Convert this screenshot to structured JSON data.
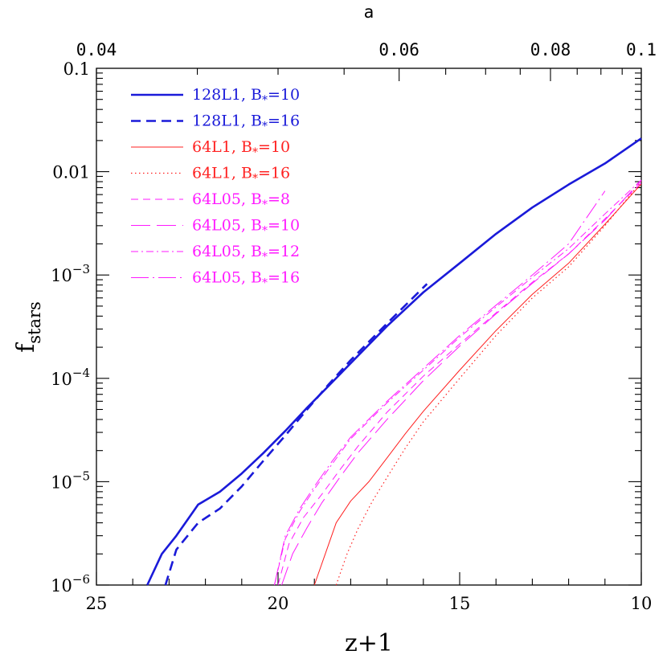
{
  "chart_data": {
    "type": "line",
    "xlabel": "z+1",
    "ylabel": "f",
    "ylabel_subscript": "stars",
    "top_axis_label": "a",
    "x_range": [
      25,
      10
    ],
    "y_range": [
      1e-06,
      0.1
    ],
    "y_scale": "log",
    "x_ticks": [
      "25",
      "20",
      "15",
      "10"
    ],
    "top_ticks": [
      "0.04",
      "0.06",
      "0.08",
      "0.1"
    ],
    "y_ticks": [
      {
        "value": 0.1,
        "mantissa": "0.1",
        "exp": ""
      },
      {
        "value": 0.01,
        "mantissa": "0.01",
        "exp": ""
      },
      {
        "value": 0.001,
        "mantissa": "10",
        "exp": "−3"
      },
      {
        "value": 0.0001,
        "mantissa": "10",
        "exp": "−4"
      },
      {
        "value": 1e-05,
        "mantissa": "10",
        "exp": "−5"
      },
      {
        "value": 1e-06,
        "mantissa": "10",
        "exp": "−6"
      }
    ],
    "legend_position": "top-left",
    "colors": {
      "blue": "#1a1ad9",
      "red": "#ff2020",
      "magenta": "#ff1aff"
    },
    "series": [
      {
        "name": "128L1, B",
        "star": "*",
        "tail": "=10",
        "color": "#1a1ad9",
        "style": "solid",
        "x": [
          23.6,
          23.2,
          22.8,
          22.2,
          21.6,
          21.0,
          20.4,
          19.8,
          19.2,
          18.6,
          18.0,
          17.0,
          16.0,
          15.0,
          14.0,
          13.0,
          12.0,
          11.0,
          10.0
        ],
        "y": [
          1e-06,
          2e-06,
          3e-06,
          6e-06,
          8e-06,
          1.2e-05,
          1.9e-05,
          3.1e-05,
          5.2e-05,
          8.5e-05,
          0.00014,
          0.00032,
          0.00068,
          0.0013,
          0.0025,
          0.0045,
          0.0075,
          0.012,
          0.021
        ]
      },
      {
        "name": "128L1, B",
        "star": "*",
        "tail": "=16",
        "color": "#1a1ad9",
        "style": "dashed",
        "x": [
          23.1,
          22.8,
          22.2,
          21.6,
          21.0,
          20.4,
          19.8,
          19.2,
          18.6,
          18.0,
          17.0,
          15.9
        ],
        "y": [
          1e-06,
          2.2e-06,
          4e-06,
          5.5e-06,
          9e-06,
          1.6e-05,
          2.8e-05,
          5e-05,
          8.8e-05,
          0.00015,
          0.00034,
          0.00082
        ]
      },
      {
        "name": "64L1, B",
        "star": "*",
        "tail": "=10",
        "color": "#ff2020",
        "style": "thin",
        "x": [
          19.0,
          18.7,
          18.4,
          18.0,
          17.5,
          17.0,
          16.5,
          16.0,
          15.0,
          14.0,
          13.0,
          12.0,
          11.0,
          10.0
        ],
        "y": [
          1e-06,
          2e-06,
          4e-06,
          6.5e-06,
          1e-05,
          1.7e-05,
          2.9e-05,
          4.8e-05,
          0.00012,
          0.00029,
          0.00065,
          0.0013,
          0.0031,
          0.0076
        ]
      },
      {
        "name": "64L1, B",
        "star": "*",
        "tail": "=16",
        "color": "#ff2020",
        "style": "dotted",
        "x": [
          18.4,
          18.1,
          17.8,
          17.4,
          17.0,
          16.5,
          16.0,
          15.0,
          14.0,
          13.0,
          12.0,
          11.0,
          10.0
        ],
        "y": [
          1e-06,
          2e-06,
          3.5e-06,
          6.5e-06,
          1.1e-05,
          2.1e-05,
          3.8e-05,
          0.0001,
          0.00026,
          0.0006,
          0.0012,
          0.003,
          0.008
        ]
      },
      {
        "name": "64L05, B",
        "star": "*",
        "tail": "=8",
        "color": "#ff1aff",
        "style": "dash-short",
        "x": [
          20.0,
          19.7,
          19.3,
          18.8,
          18.3,
          17.8,
          17.0,
          16.0,
          15.0,
          14.0,
          13.0,
          12.0,
          11.0,
          10.0
        ],
        "y": [
          1e-06,
          2.5e-06,
          4.5e-06,
          7.5e-06,
          1.3e-05,
          2.2e-05,
          4.7e-05,
          0.000105,
          0.000215,
          0.00043,
          0.00085,
          0.0016,
          0.0035,
          0.0078
        ]
      },
      {
        "name": "64L05, B",
        "star": "*",
        "tail": "=10",
        "color": "#ff1aff",
        "style": "dash-long",
        "x": [
          19.9,
          19.6,
          19.2,
          18.8,
          18.3,
          17.8,
          17.0,
          16.0,
          15.0,
          14.0,
          13.0,
          12.0,
          11.0,
          10.0
        ],
        "y": [
          1e-06,
          2e-06,
          3.6e-06,
          6.2e-06,
          1.1e-05,
          1.9e-05,
          4e-05,
          9.5e-05,
          0.000205,
          0.00042,
          0.00083,
          0.0016,
          0.0034,
          0.0082
        ]
      },
      {
        "name": "64L05, B",
        "star": "*",
        "tail": "=12",
        "color": "#ff1aff",
        "style": "dash-dot",
        "x": [
          20.1,
          19.8,
          19.4,
          19.0,
          18.5,
          18.0,
          17.0,
          16.0,
          15.0,
          14.0,
          13.0,
          12.0,
          11.0,
          10.0
        ],
        "y": [
          1e-06,
          2.8e-06,
          5.2e-06,
          8.5e-06,
          1.5e-05,
          2.6e-05,
          5.8e-05,
          0.00012,
          0.00025,
          0.00049,
          0.00095,
          0.0018,
          0.0039,
          0.0083
        ]
      },
      {
        "name": "64L05, B",
        "star": "*",
        "tail": "=16",
        "color": "#ff1aff",
        "style": "dash-dot-long",
        "x": [
          20.1,
          19.8,
          19.4,
          19.0,
          18.5,
          18.0,
          17.0,
          16.0,
          15.0,
          14.0,
          13.0,
          12.0,
          11.0
        ],
        "y": [
          1e-06,
          3e-06,
          5.5e-06,
          9e-06,
          1.6e-05,
          2.7e-05,
          6e-05,
          0.000125,
          0.00026,
          0.00051,
          0.001,
          0.002,
          0.0065
        ]
      }
    ]
  }
}
